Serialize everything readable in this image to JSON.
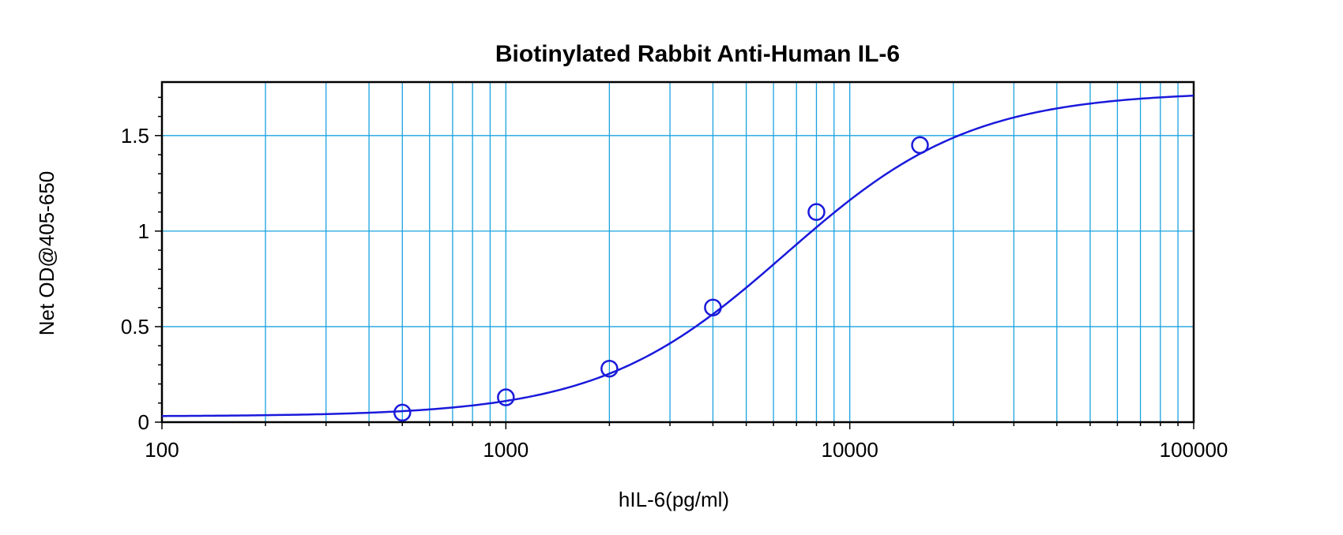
{
  "chart_data": {
    "type": "scatter",
    "title": "Biotinylated Rabbit Anti-Human IL-6",
    "xlabel": "hIL-6(pg/ml)",
    "ylabel": "Net OD@405-650",
    "xscale": "log",
    "xlim": [
      100,
      100000
    ],
    "ylim": [
      0,
      1.78
    ],
    "grid": true,
    "x_ticks": [
      {
        "value": 100,
        "label": "100"
      },
      {
        "value": 1000,
        "label": "1000"
      },
      {
        "value": 10000,
        "label": "10000"
      },
      {
        "value": 100000,
        "label": "100000"
      }
    ],
    "y_ticks": [
      {
        "value": 0,
        "label": "0"
      },
      {
        "value": 0.5,
        "label": "0.5"
      },
      {
        "value": 1,
        "label": "1"
      },
      {
        "value": 1.5,
        "label": "1.5"
      }
    ],
    "points": [
      {
        "x": 500,
        "y": 0.05
      },
      {
        "x": 1000,
        "y": 0.13
      },
      {
        "x": 2000,
        "y": 0.28
      },
      {
        "x": 4000,
        "y": 0.6
      },
      {
        "x": 8000,
        "y": 1.1
      },
      {
        "x": 16000,
        "y": 1.45
      }
    ],
    "fit_curve": {
      "model": "4PL",
      "bottom": 0.03,
      "top": 1.73,
      "ec50": 6500,
      "hill": 1.6
    },
    "colors": {
      "series": "#1a1adb",
      "grid": "#1aa3e0",
      "frame": "#000000"
    }
  }
}
